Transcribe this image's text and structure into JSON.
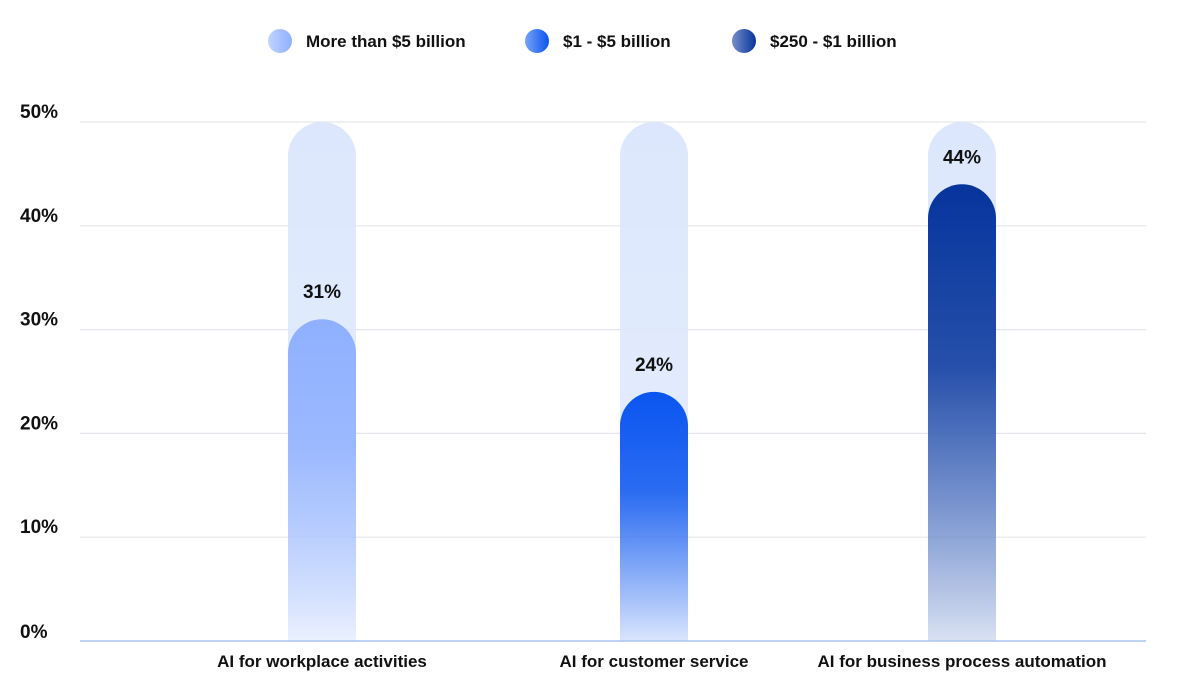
{
  "chart_data": {
    "type": "bar",
    "categories": [
      "AI for workplace activities",
      "AI for customer service",
      "AI for business process automation"
    ],
    "series": [
      {
        "name": "More than $5 billion",
        "values": [
          31,
          null,
          null
        ],
        "color": "#8fb0ff"
      },
      {
        "name": "$1 - $5 billion",
        "values": [
          null,
          24,
          null
        ],
        "color": "#0a55f0"
      },
      {
        "name": "$250 - $1 billion",
        "values": [
          null,
          null,
          44
        ],
        "color": "#05349c"
      }
    ],
    "data_labels": [
      "31%",
      "24%",
      "44%"
    ],
    "track_max": 50,
    "ylim": [
      0,
      50
    ],
    "yticks": [
      0,
      10,
      20,
      30,
      40,
      50
    ],
    "ytick_labels": [
      "0%",
      "10%",
      "20%",
      "30%",
      "40%",
      "50%"
    ],
    "track_color": "#dce7fd",
    "grid": true,
    "legend_position": "top-center",
    "xlabel": "",
    "ylabel": ""
  }
}
